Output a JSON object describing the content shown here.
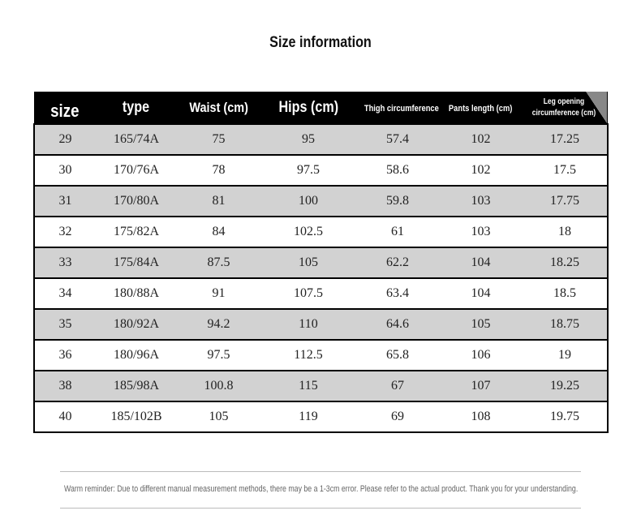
{
  "title": "Size information",
  "table": {
    "header": [
      "size",
      "type",
      "Waist (cm)",
      "Hips (cm)",
      "Thigh circumference(cm)",
      "Pants length (cm)",
      "Leg opening circumference (cm)"
    ],
    "rows": [
      [
        "29",
        "165/74A",
        "75",
        "95",
        "57.4",
        "102",
        "17.25"
      ],
      [
        "30",
        "170/76A",
        "78",
        "97.5",
        "58.6",
        "102",
        "17.5"
      ],
      [
        "31",
        "170/80A",
        "81",
        "100",
        "59.8",
        "103",
        "17.75"
      ],
      [
        "32",
        "175/82A",
        "84",
        "102.5",
        "61",
        "103",
        "18"
      ],
      [
        "33",
        "175/84A",
        "87.5",
        "105",
        "62.2",
        "104",
        "18.25"
      ],
      [
        "34",
        "180/88A",
        "91",
        "107.5",
        "63.4",
        "104",
        "18.5"
      ],
      [
        "35",
        "180/92A",
        "94.2",
        "110",
        "64.6",
        "105",
        "18.75"
      ],
      [
        "36",
        "180/96A",
        "97.5",
        "112.5",
        "65.8",
        "106",
        "19"
      ],
      [
        "38",
        "185/98A",
        "100.8",
        "115",
        "67",
        "107",
        "19.25"
      ],
      [
        "40",
        "185/102B",
        "105",
        "119",
        "69",
        "108",
        "19.75"
      ]
    ]
  },
  "footer": "Warm reminder: Due to different manual measurement methods, there may be a 1-3cm error. Please refer to the actual product. Thank you for your understanding."
}
